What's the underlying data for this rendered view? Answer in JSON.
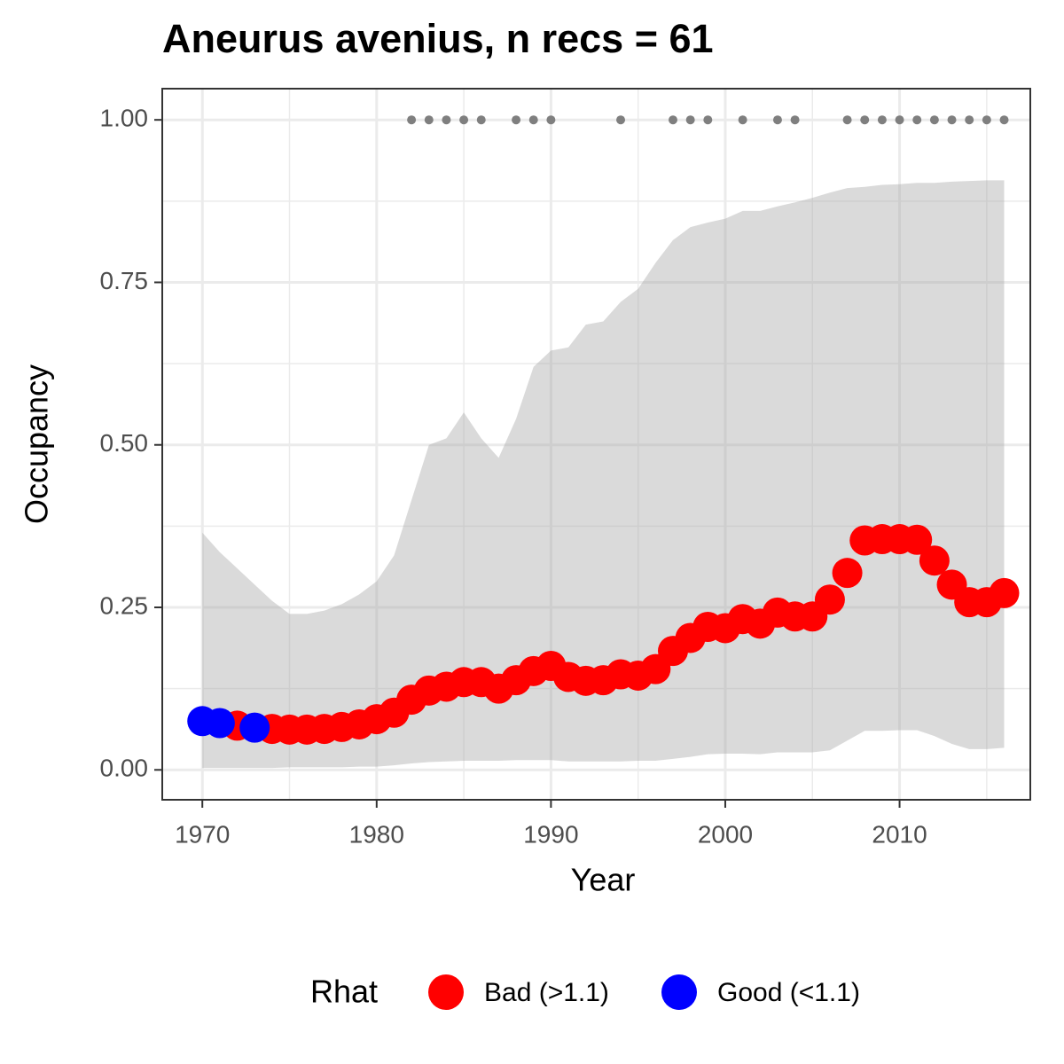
{
  "chart_data": {
    "type": "scatter",
    "title": "Aneurus avenius, n recs = 61",
    "x_label": "Year",
    "y_label": "Occupancy",
    "legend_title": "Rhat",
    "legend_position": "bottom",
    "grid": true,
    "xlim": [
      1967.7,
      2017.5
    ],
    "ylim": [
      -0.046,
      1.048
    ],
    "xticks": [
      1970,
      1980,
      1990,
      2000,
      2010
    ],
    "yticks": [
      {
        "value": 0,
        "label": "0.00"
      },
      {
        "value": 0.25,
        "label": "0.25"
      },
      {
        "value": 0.5,
        "label": "0.50"
      },
      {
        "value": 0.75,
        "label": "0.75"
      },
      {
        "value": 1,
        "label": "1.00"
      }
    ],
    "x": [
      1970,
      1971,
      1972,
      1973,
      1974,
      1975,
      1976,
      1977,
      1978,
      1979,
      1980,
      1981,
      1982,
      1983,
      1984,
      1985,
      1986,
      1987,
      1988,
      1989,
      1990,
      1991,
      1992,
      1993,
      1994,
      1995,
      1996,
      1997,
      1998,
      1999,
      2000,
      2001,
      2002,
      2003,
      2004,
      2005,
      2006,
      2007,
      2008,
      2009,
      2010,
      2011,
      2012,
      2013,
      2014,
      2015,
      2016
    ],
    "series": [
      {
        "name": "Bad (>1.1)",
        "color": "#ff0000",
        "values": [
          null,
          null,
          0.068,
          null,
          0.063,
          0.062,
          0.062,
          0.063,
          0.066,
          0.07,
          0.078,
          0.088,
          0.108,
          0.122,
          0.128,
          0.135,
          0.135,
          0.125,
          0.138,
          0.152,
          0.16,
          0.143,
          0.137,
          0.138,
          0.147,
          0.145,
          0.155,
          0.183,
          0.203,
          0.22,
          0.218,
          0.232,
          0.225,
          0.242,
          0.236,
          0.236,
          0.262,
          0.303,
          0.353,
          0.355,
          0.355,
          0.354,
          0.322,
          0.285,
          0.258,
          0.258,
          0.272
        ]
      },
      {
        "name": "Good (<1.1)",
        "color": "#0000ff",
        "values": [
          0.075,
          0.072,
          null,
          0.065,
          null,
          null,
          null,
          null,
          null,
          null,
          null,
          null,
          null,
          null,
          null,
          null,
          null,
          null,
          null,
          null,
          null,
          null,
          null,
          null,
          null,
          null,
          null,
          null,
          null,
          null,
          null,
          null,
          null,
          null,
          null,
          null,
          null,
          null,
          null,
          null,
          null,
          null,
          null,
          null,
          null,
          null,
          null
        ]
      }
    ],
    "ribbon_color": "#a3a3a3",
    "upper": [
      0.365,
      0.335,
      0.31,
      0.285,
      0.26,
      0.24,
      0.24,
      0.245,
      0.255,
      0.27,
      0.29,
      0.33,
      0.415,
      0.5,
      0.51,
      0.55,
      0.51,
      0.48,
      0.54,
      0.62,
      0.645,
      0.65,
      0.685,
      0.69,
      0.72,
      0.74,
      0.78,
      0.815,
      0.835,
      0.842,
      0.848,
      0.86,
      0.86,
      0.867,
      0.873,
      0.88,
      0.888,
      0.895,
      0.897,
      0.9,
      0.901,
      0.903,
      0.903,
      0.905,
      0.906,
      0.907,
      0.907
    ],
    "lower": [
      0.003,
      0.003,
      0.003,
      0.003,
      0.003,
      0.004,
      0.004,
      0.004,
      0.004,
      0.005,
      0.005,
      0.007,
      0.01,
      0.012,
      0.013,
      0.014,
      0.014,
      0.014,
      0.015,
      0.015,
      0.015,
      0.013,
      0.013,
      0.013,
      0.013,
      0.014,
      0.014,
      0.017,
      0.02,
      0.024,
      0.025,
      0.025,
      0.024,
      0.027,
      0.027,
      0.027,
      0.03,
      0.045,
      0.06,
      0.06,
      0.061,
      0.061,
      0.052,
      0.04,
      0.032,
      0.032,
      0.034
    ],
    "records": {
      "color": "#7f7f7f",
      "x": [
        1982,
        1983,
        1984,
        1985,
        1986,
        1988,
        1989,
        1990,
        1994,
        1997,
        1998,
        1999,
        2001,
        2003,
        2004,
        2007,
        2008,
        2009,
        2010,
        2011,
        2012,
        2013,
        2014,
        2015,
        2016
      ],
      "values": [
        1,
        1,
        1,
        1,
        1,
        1,
        1,
        1,
        1,
        1,
        1,
        1,
        1,
        1,
        1,
        1,
        1,
        1,
        1,
        1,
        1,
        1,
        1,
        1,
        1
      ]
    }
  }
}
